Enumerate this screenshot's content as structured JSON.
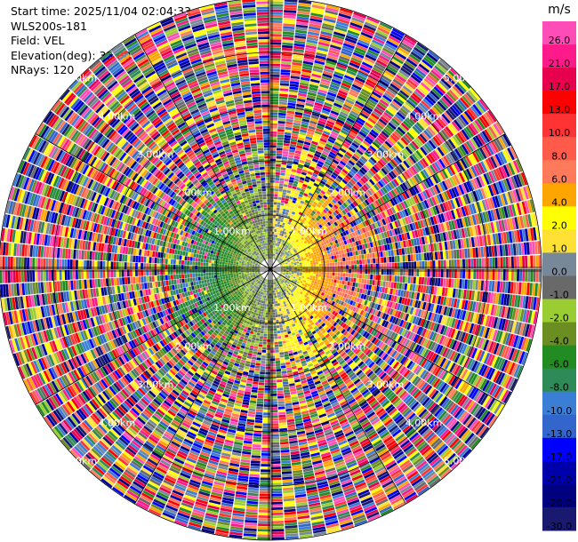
{
  "info": {
    "start_time": "Start time: 2025/11/04 02:04:33",
    "instrument": "WLS200s-181",
    "field": "Field: VEL",
    "elevation": "Elevation(deg): 35.00",
    "nrays": "NRays: 120"
  },
  "chart_data": {
    "type": "heatmap",
    "projection": "polar PPI",
    "grid": true,
    "range_rings_km": [
      1,
      2,
      3,
      4,
      5
    ],
    "range_labels": {
      "1": "1.00km",
      "2": "2.00km",
      "3": "3.00km",
      "4": "4.00km",
      "5": "5.00km"
    },
    "max_range_km": 5.0,
    "nrays": 120,
    "gates_per_ray": 100,
    "colorbar": {
      "unit": "m/s",
      "ticks": [
        "26.0",
        "21.0",
        "17.0",
        "13.0",
        "10.0",
        "8.0",
        "6.0",
        "4.0",
        "2.0",
        "1.0",
        "0.0",
        "-1.0",
        "-2.0",
        "-4.0",
        "-6.0",
        "-8.0",
        "-10.0",
        "-13.0",
        "-17.0",
        "-21.0",
        "-26.0",
        "-30.0"
      ],
      "colors": [
        "#ff4db8",
        "#ff1a8c",
        "#e6004d",
        "#ff0000",
        "#ff3333",
        "#ff5a4a",
        "#ff7a5a",
        "#ffa500",
        "#ffff00",
        "#ffe135",
        "#778899",
        "#696969",
        "#9acd32",
        "#6b8e23",
        "#228b22",
        "#2e8b57",
        "#3a7fd5",
        "#3366cc",
        "#0000ff",
        "#0000aa",
        "#000080",
        "#191970"
      ]
    }
  }
}
